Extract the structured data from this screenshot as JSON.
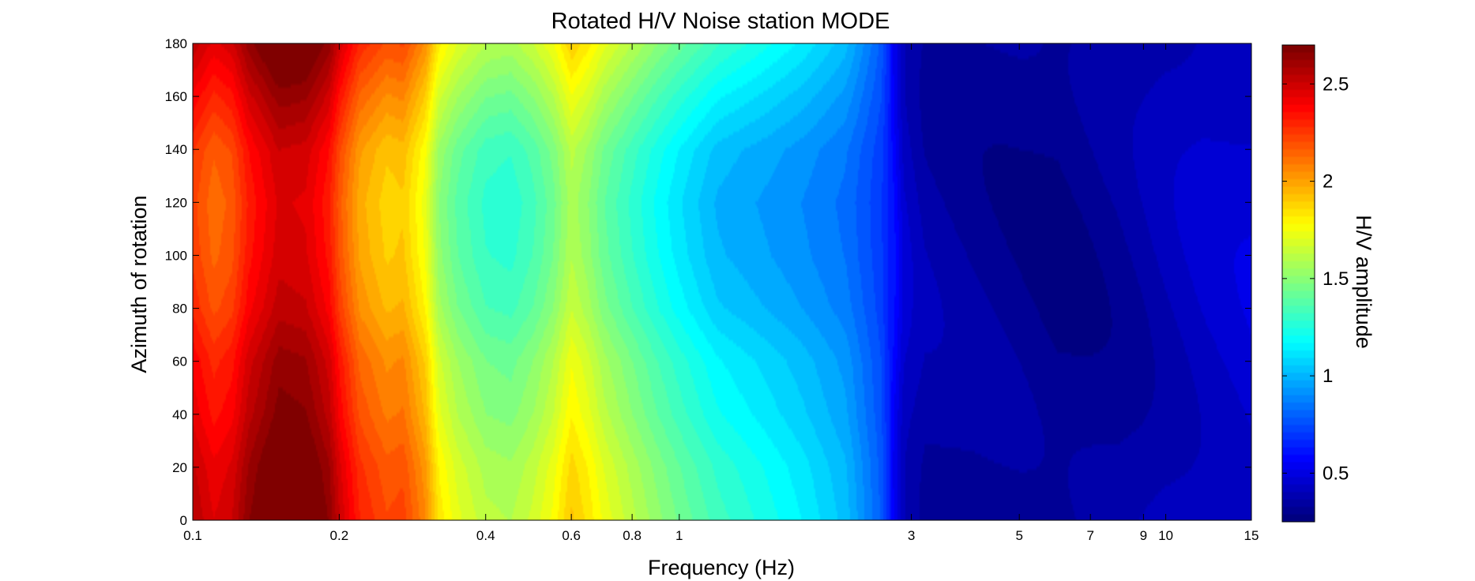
{
  "chart_data": {
    "type": "heatmap",
    "title": "Rotated H/V Noise station MODE",
    "xlabel": "Frequency (Hz)",
    "ylabel": "Azimuth of rotation",
    "colorbar_label": "H/V amplitude",
    "x_scale": "log",
    "xlim": [
      0.1,
      15
    ],
    "ylim": [
      0,
      180
    ],
    "clim": [
      0.25,
      2.7
    ],
    "colormap": "jet",
    "x_ticks": [
      {
        "value": 0.1,
        "label": "0.1"
      },
      {
        "value": 0.2,
        "label": "0.2"
      },
      {
        "value": 0.4,
        "label": "0.4"
      },
      {
        "value": 0.6,
        "label": "0.6"
      },
      {
        "value": 0.8,
        "label": "0.8"
      },
      {
        "value": 1,
        "label": "1"
      },
      {
        "value": 3,
        "label": "3"
      },
      {
        "value": 5,
        "label": "5"
      },
      {
        "value": 7,
        "label": "7"
      },
      {
        "value": 9,
        "label": "9"
      },
      {
        "value": 10,
        "label": "10"
      },
      {
        "value": 15,
        "label": "15"
      }
    ],
    "y_ticks": [
      {
        "value": 0,
        "label": "0"
      },
      {
        "value": 20,
        "label": "20"
      },
      {
        "value": 40,
        "label": "40"
      },
      {
        "value": 60,
        "label": "60"
      },
      {
        "value": 80,
        "label": "80"
      },
      {
        "value": 100,
        "label": "100"
      },
      {
        "value": 120,
        "label": "120"
      },
      {
        "value": 140,
        "label": "140"
      },
      {
        "value": 160,
        "label": "160"
      },
      {
        "value": 180,
        "label": "180"
      }
    ],
    "colorbar_ticks": [
      {
        "value": 0.5,
        "label": "0.5"
      },
      {
        "value": 1,
        "label": "1"
      },
      {
        "value": 1.5,
        "label": "1.5"
      },
      {
        "value": 2,
        "label": "2"
      },
      {
        "value": 2.5,
        "label": "2.5"
      }
    ],
    "frequencies": [
      0.1,
      0.11,
      0.12,
      0.13,
      0.15,
      0.17,
      0.19,
      0.2,
      0.22,
      0.25,
      0.27,
      0.3,
      0.32,
      0.35,
      0.4,
      0.45,
      0.5,
      0.55,
      0.6,
      0.65,
      0.7,
      0.8,
      0.9,
      1,
      1.2,
      1.5,
      1.8,
      2.2,
      2.6,
      2.9,
      3.2,
      4,
      5,
      6,
      7,
      8,
      9,
      10,
      12,
      15
    ],
    "azimuths": [
      0,
      20,
      40,
      60,
      80,
      100,
      120,
      140,
      160,
      180
    ],
    "base_profile": [
      2.45,
      2.35,
      2.4,
      2.55,
      2.7,
      2.68,
      2.55,
      2.4,
      2.2,
      2.1,
      2.12,
      1.95,
      1.72,
      1.6,
      1.5,
      1.48,
      1.55,
      1.65,
      1.8,
      1.72,
      1.62,
      1.5,
      1.4,
      1.32,
      1.2,
      1.12,
      1.05,
      0.95,
      0.75,
      0.42,
      0.35,
      0.32,
      0.3,
      0.28,
      0.3,
      0.32,
      0.35,
      0.38,
      0.42,
      0.45
    ],
    "azimuth_modulation": [
      0.12,
      0.08,
      0.0,
      -0.05,
      -0.15,
      -0.2,
      -0.22,
      -0.18,
      -0.05,
      0.1
    ]
  }
}
